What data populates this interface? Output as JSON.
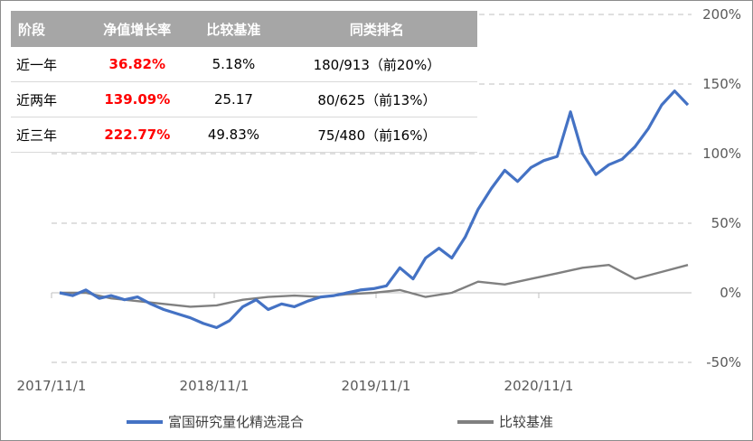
{
  "table": {
    "headers": [
      "阶段",
      "净值增长率",
      "比较基准",
      "同类排名"
    ],
    "rows": [
      {
        "period": "近一年",
        "growth": "36.82%",
        "benchmark": "5.18%",
        "rank": "180/913（前20%）"
      },
      {
        "period": "近两年",
        "growth": "139.09%",
        "benchmark": "25.17",
        "rank": "80/625（前13%）"
      },
      {
        "period": "近三年",
        "growth": "222.77%",
        "benchmark": "49.83%",
        "rank": "75/480（前16%）"
      }
    ]
  },
  "colors": {
    "fund": "#4472c4",
    "benchmark": "#808080",
    "header_bg": "#a6a6a6",
    "highlight": "#ff0000",
    "grid": "#bfbfbf"
  },
  "chart_data": {
    "type": "line",
    "x_tick_labels": [
      "2017/11/1",
      "2018/11/1",
      "2019/11/1",
      "2020/11/1"
    ],
    "y_tick_labels": [
      "200%",
      "150%",
      "100%",
      "50%",
      "0%",
      "-50%"
    ],
    "ylim": [
      -50,
      200
    ],
    "y_axis_position": "right",
    "grid": "horizontal-dashed",
    "legend_position": "bottom",
    "series": [
      {
        "name": "富国研究量化精选混合",
        "x": [
          "2017-11-01",
          "2017-12-01",
          "2018-01-01",
          "2018-02-01",
          "2018-03-01",
          "2018-04-01",
          "2018-05-01",
          "2018-06-01",
          "2018-07-01",
          "2018-08-01",
          "2018-09-01",
          "2018-10-01",
          "2018-11-01",
          "2018-12-01",
          "2019-01-01",
          "2019-02-01",
          "2019-03-01",
          "2019-04-01",
          "2019-05-01",
          "2019-06-01",
          "2019-07-01",
          "2019-08-01",
          "2019-09-01",
          "2019-10-01",
          "2019-11-01",
          "2019-12-01",
          "2020-01-01",
          "2020-02-01",
          "2020-03-01",
          "2020-04-01",
          "2020-05-01",
          "2020-06-01",
          "2020-07-01",
          "2020-08-01",
          "2020-09-01",
          "2020-10-01",
          "2020-11-01",
          "2020-12-01",
          "2021-01-01",
          "2021-02-01",
          "2021-03-01",
          "2021-04-01",
          "2021-05-01",
          "2021-06-01",
          "2021-07-01",
          "2021-08-01",
          "2021-09-01",
          "2021-10-01",
          "2021-11-01"
        ],
        "y": [
          0,
          -2,
          2,
          -4,
          -2,
          -5,
          -3,
          -8,
          -12,
          -15,
          -18,
          -22,
          -25,
          -20,
          -10,
          -5,
          -12,
          -8,
          -10,
          -6,
          -3,
          -2,
          0,
          2,
          3,
          5,
          18,
          10,
          25,
          32,
          25,
          40,
          60,
          75,
          88,
          80,
          90,
          95,
          98,
          130,
          100,
          85,
          92,
          96,
          105,
          118,
          135,
          145,
          135
        ]
      },
      {
        "name": "比较基准",
        "x": [
          "2017-11-01",
          "2018-01-01",
          "2018-03-01",
          "2018-05-01",
          "2018-07-01",
          "2018-09-01",
          "2018-11-01",
          "2019-01-01",
          "2019-03-01",
          "2019-05-01",
          "2019-07-01",
          "2019-09-01",
          "2019-11-01",
          "2020-01-01",
          "2020-03-01",
          "2020-05-01",
          "2020-07-01",
          "2020-09-01",
          "2020-11-01",
          "2021-01-01",
          "2021-03-01",
          "2021-05-01",
          "2021-07-01",
          "2021-09-01",
          "2021-11-01"
        ],
        "y": [
          0,
          0,
          -4,
          -6,
          -8,
          -10,
          -9,
          -5,
          -3,
          -2,
          -3,
          -1,
          0,
          2,
          -3,
          0,
          8,
          6,
          10,
          14,
          18,
          20,
          10,
          15,
          20
        ]
      }
    ]
  }
}
